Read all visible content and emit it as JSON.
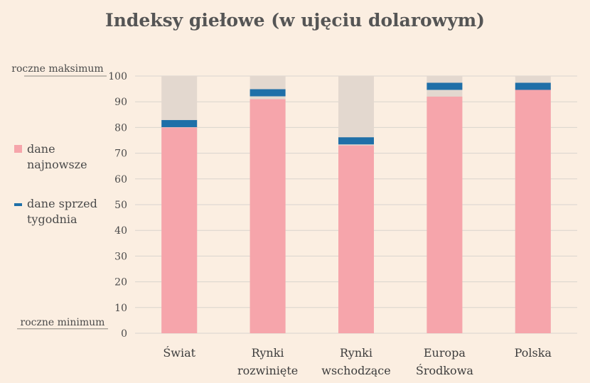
{
  "chart_data": {
    "type": "bar",
    "title": "Indeksy giełowe (w ujęciu dolarowym)",
    "categories": [
      [
        "Świat"
      ],
      [
        "Rynki",
        "rozwinięte"
      ],
      [
        "Rynki",
        "wschodzące"
      ],
      [
        "Europa",
        "Środkowa"
      ],
      [
        "Polska"
      ]
    ],
    "series": [
      {
        "name": "dane najnowsze",
        "values": [
          80,
          91,
          73,
          92,
          95
        ],
        "color": "#f6a5ab"
      },
      {
        "name": "dane sprzed tygodnia",
        "values": [
          81.5,
          93.5,
          74.8,
          96,
          96
        ],
        "color": "#1f6fa8"
      }
    ],
    "range_background": {
      "values": [
        100,
        100,
        100,
        100,
        100
      ],
      "color": "#e3d8cf"
    },
    "ylim": [
      0,
      100
    ],
    "yticks": [
      0,
      10,
      20,
      30,
      40,
      50,
      60,
      70,
      80,
      90,
      100
    ],
    "y_top_label": "roczne maksimum",
    "y_bottom_label": "roczne minimum",
    "grid": true,
    "legend_placement": "left"
  },
  "legend": {
    "latest_line1": "dane",
    "latest_line2": "najnowsze",
    "week_line1": "dane sprzed",
    "week_line2": "tygodnia"
  }
}
